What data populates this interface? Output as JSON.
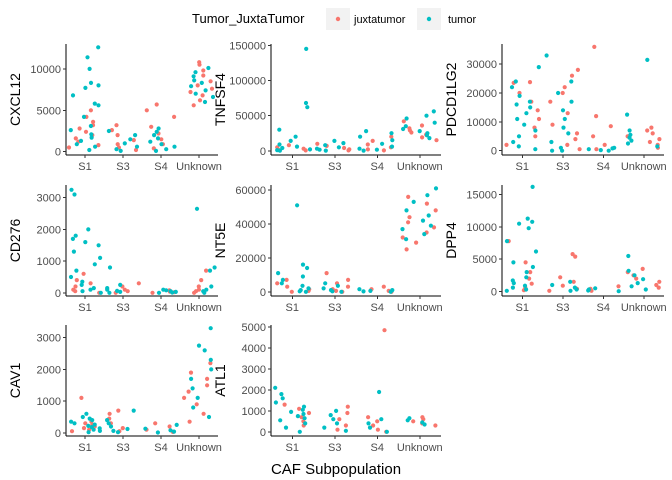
{
  "legend": {
    "title": "Tumor_JuxtaTumor",
    "items": [
      {
        "label": "juxtatumor",
        "color": "#F8766D"
      },
      {
        "label": "tumor",
        "color": "#00BFC4"
      }
    ],
    "placement": "top"
  },
  "xlabel": "CAF Subpopulation",
  "chart_data": {
    "type": "scatter",
    "style": "jittered strip plot, faceted",
    "categories": [
      "S1",
      "S3",
      "S4",
      "Unknown"
    ],
    "xlabel": "CAF Subpopulation",
    "colors": {
      "juxtatumor": "#F8766D",
      "tumor": "#00BFC4"
    },
    "panels": [
      {
        "ylabel": "CXCL12",
        "ylim": [
          -400,
          13000
        ],
        "yticks": [
          0,
          5000,
          10000
        ],
        "points": {
          "S1": {
            "juxtatumor": [
              500,
              800,
              1200,
              1600,
              2000,
              2400,
              2800,
              3200,
              3600,
              4200,
              5000
            ],
            "tumor": [
              200,
              600,
              900,
              1300,
              1700,
              2100,
              2600,
              3100,
              4200,
              5600,
              5800,
              6800,
              7700,
              8000,
              8300,
              10000,
              11400,
              12600
            ]
          },
          "S3": {
            "juxtatumor": [
              200,
              500,
              900,
              1400,
              2000,
              2600,
              3200
            ],
            "tumor": [
              100,
              300,
              600,
              1000,
              1500,
              2000,
              2500
            ]
          },
          "S4": {
            "juxtatumor": [
              400,
              900,
              1500,
              2200,
              3000,
              4200,
              5000,
              5700
            ],
            "tumor": [
              100,
              300,
              600,
              900,
              1200,
              1600,
              2000,
              2400,
              2800
            ]
          },
          "Unknown": {
            "juxtatumor": [
              5600,
              6200,
              6800,
              7200,
              7600,
              8000,
              8500,
              9200,
              9800,
              10500,
              10800
            ],
            "tumor": [
              6000,
              6600,
              7000,
              7400,
              7900,
              8300,
              8600,
              9100,
              9600,
              10100
            ]
          }
        }
      },
      {
        "ylabel": "TNFSF4",
        "ylim": [
          -6000,
          152000
        ],
        "yticks": [
          0,
          50000,
          100000,
          150000
        ],
        "points": {
          "S1": {
            "juxtatumor": [
              500,
              1500,
              3000,
              5000,
              8000
            ],
            "tumor": [
              200,
              1000,
              2000,
              4000,
              6000,
              9000,
              14000,
              20000,
              30000,
              62000,
              68000,
              145000
            ]
          },
          "S3": {
            "juxtatumor": [
              500,
              2000,
              4000,
              7000,
              10000
            ],
            "tumor": [
              300,
              1500,
              3000,
              5000,
              8000,
              11000,
              14000
            ]
          },
          "S4": {
            "juxtatumor": [
              500,
              2000,
              5000,
              9000,
              14000,
              20000
            ],
            "tumor": [
              300,
              1500,
              3000,
              6000,
              10000,
              15000,
              20000,
              25000,
              28000
            ]
          },
          "Unknown": {
            "juxtatumor": [
              15000,
              19000,
              23000,
              26000,
              29000,
              32000,
              36000,
              42000
            ],
            "tumor": [
              18000,
              22000,
              25000,
              28000,
              31000,
              35000,
              40000,
              46000,
              50000,
              56000
            ]
          }
        }
      },
      {
        "ylabel": "PDCD1LG2",
        "ylim": [
          -1500,
          37000
        ],
        "yticks": [
          0,
          10000,
          20000,
          30000
        ],
        "points": {
          "S1": {
            "juxtatumor": [
              2000,
              5000,
              8000,
              11000,
              14000,
              17000,
              20000,
              23500,
              23800
            ],
            "tumor": [
              500,
              1500,
              3000,
              5000,
              7000,
              9000,
              11000,
              13000,
              15000,
              16000,
              17000,
              19000,
              22000,
              24000,
              29000
            ]
          },
          "S3": {
            "juxtatumor": [
              500,
              2000,
              4000,
              6000,
              9000,
              13000,
              17000,
              20000,
              22000,
              26000,
              28000
            ],
            "tumor": [
              0,
              0,
              1000,
              3000,
              6000,
              8000,
              11000,
              14000,
              17000,
              20000,
              24000,
              33000
            ]
          },
          "S4": {
            "juxtatumor": [
              500,
              2000,
              5000,
              8500,
              12000,
              36000
            ],
            "tumor": [
              0,
              200,
              500,
              800,
              1000
            ]
          },
          "Unknown": {
            "juxtatumor": [
              1000,
              2000,
              3000,
              4000,
              5000,
              6000,
              7000,
              8000
            ],
            "tumor": [
              1500,
              2500,
              3500,
              4500,
              5500,
              7000,
              12500,
              31500
            ]
          }
        }
      },
      {
        "ylabel": "CD276",
        "ylim": [
          -100,
          3400
        ],
        "yticks": [
          0,
          1000,
          2000,
          3000
        ],
        "points": {
          "S1": {
            "juxtatumor": [
              0,
              50,
              100,
              200,
              300,
              400,
              600
            ],
            "tumor": [
              0,
              50,
              100,
              150,
              250,
              350,
              500,
              700,
              900,
              1100,
              1300,
              1500,
              1600,
              1700,
              1800,
              2000,
              3100,
              3250
            ]
          },
          "S3": {
            "juxtatumor": [
              0,
              50,
              100,
              200,
              300
            ],
            "tumor": [
              0,
              30,
              60,
              100,
              150,
              250,
              800
            ]
          },
          "S4": {
            "juxtatumor": [
              0,
              20,
              40,
              80
            ],
            "tumor": [
              0,
              10,
              30,
              50,
              80,
              100
            ]
          },
          "Unknown": {
            "juxtatumor": [
              0,
              50,
              100,
              200,
              400,
              700
            ],
            "tumor": [
              0,
              50,
              100,
              200,
              700,
              800,
              2650
            ]
          }
        }
      },
      {
        "ylabel": "NT5E",
        "ylim": [
          -2500,
          63000
        ],
        "yticks": [
          0,
          20000,
          40000,
          60000
        ],
        "points": {
          "S1": {
            "juxtatumor": [
              0,
              500,
              1500,
              3000,
              5000,
              7000
            ],
            "tumor": [
              0,
              300,
              1000,
              2000,
              3500,
              5000,
              7000,
              9000,
              11000,
              14000,
              16000,
              51000
            ]
          },
          "S3": {
            "juxtatumor": [
              0,
              500,
              1500,
              3000,
              5000,
              7000,
              11000
            ],
            "tumor": [
              0,
              300,
              1000,
              2000,
              3500,
              5000
            ]
          },
          "S4": {
            "juxtatumor": [
              0,
              500,
              1500,
              3000
            ],
            "tumor": [
              0,
              200,
              500,
              1000,
              1500
            ]
          },
          "Unknown": {
            "juxtatumor": [
              25000,
              29000,
              32000,
              35000,
              38000,
              41000,
              44000,
              48000,
              52000,
              56000
            ],
            "tumor": [
              31000,
              34000,
              37000,
              39000,
              42000,
              45000,
              48000,
              53000,
              57000,
              61000
            ]
          }
        }
      },
      {
        "ylabel": "DPP4",
        "ylim": [
          -700,
          16500
        ],
        "yticks": [
          0,
          5000,
          10000,
          15000
        ],
        "points": {
          "S1": {
            "juxtatumor": [
              200,
              600,
              1200,
              2000,
              3000,
              4500,
              7800
            ],
            "tumor": [
              100,
              300,
              600,
              900,
              1300,
              1700,
              2200,
              3000,
              3800,
              4500,
              6200,
              7800,
              9800,
              10500,
              10800,
              11300,
              16200
            ]
          },
          "S3": {
            "juxtatumor": [
              100,
              400,
              900,
              1500,
              2200,
              5400,
              5800
            ],
            "tumor": [
              100,
              300,
              600,
              1000,
              1500
            ]
          },
          "S4": {
            "juxtatumor": [
              100,
              400,
              800
            ],
            "tumor": [
              50,
              150,
              300,
              500
            ]
          },
          "Unknown": {
            "juxtatumor": [
              600,
              1000,
              1500,
              2000,
              2500,
              3000,
              3500
            ],
            "tumor": [
              300,
              800,
              1300,
              1900,
              2500,
              3200,
              5500
            ]
          }
        }
      },
      {
        "ylabel": "CAV1",
        "ylim": [
          -100,
          3400
        ],
        "yticks": [
          0,
          1000,
          2000,
          3000
        ],
        "points": {
          "S1": {
            "juxtatumor": [
              50,
              100,
              150,
              200,
              250,
              300,
              350,
              1100
            ],
            "tumor": [
              20,
              60,
              100,
              140,
              180,
              220,
              260,
              300,
              350,
              400,
              450,
              500,
              600
            ]
          },
          "S3": {
            "juxtatumor": [
              50,
              150,
              300,
              450,
              600,
              700
            ],
            "tumor": [
              20,
              60,
              120,
              200,
              300,
              400,
              700
            ]
          },
          "S4": {
            "juxtatumor": [
              30,
              100,
              200,
              300
            ],
            "tumor": [
              10,
              40,
              80,
              130,
              250
            ]
          },
          "Unknown": {
            "juxtatumor": [
              350,
              600,
              900,
              1100,
              1300,
              1500,
              1700,
              1900,
              2200
            ],
            "tumor": [
              500,
              800,
              1100,
              1400,
              1700,
              2000,
              2300,
              2600,
              2750,
              3300
            ]
          }
        }
      },
      {
        "ylabel": "ATL1",
        "ylim": [
          -200,
          5100
        ],
        "yticks": [
          0,
          1000,
          2000,
          3000,
          4000,
          5000
        ],
        "points": {
          "S1": {
            "juxtatumor": [
              300,
              500,
              700,
              900,
              1100,
              1300
            ],
            "tumor": [
              0,
              200,
              400,
              550,
              650,
              750,
              850,
              950,
              1050,
              1200,
              1400,
              1600,
              1800,
              2100
            ]
          },
          "S3": {
            "juxtatumor": [
              100,
              300,
              600,
              900,
              1200
            ],
            "tumor": [
              50,
              200,
              400,
              600,
              800,
              1000
            ]
          },
          "S4": {
            "juxtatumor": [
              0,
              100,
              300,
              500,
              700,
              4850
            ],
            "tumor": [
              0,
              200,
              400,
              600,
              1900
            ]
          },
          "Unknown": {
            "juxtatumor": [
              300,
              400,
              500,
              600,
              700
            ],
            "tumor": [
              350,
              450,
              550,
              650
            ]
          }
        }
      }
    ]
  }
}
